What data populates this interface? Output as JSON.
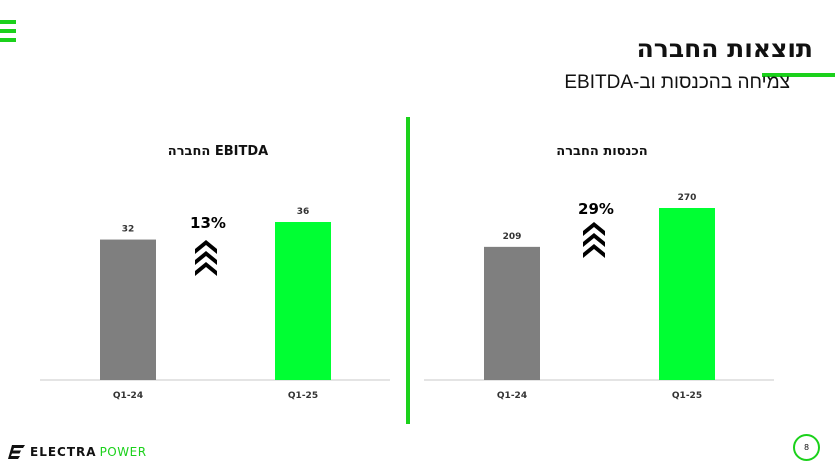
{
  "header": {
    "title": "תוצאות החברה",
    "subtitle": "צמיחה בהכנסות וב-EBITDA"
  },
  "colors": {
    "accent": "#1bd11b",
    "bar_prev": "#7f7f7f",
    "bar_curr": "#00ff33",
    "axis": "#c8c8c8"
  },
  "chart_data": [
    {
      "type": "bar",
      "title": "EBITDA החברה",
      "categories": [
        "Q1-24",
        "Q1-25"
      ],
      "values": [
        32,
        36
      ],
      "growth_label": "13%",
      "grid": false
    },
    {
      "type": "bar",
      "title": "הכנסות החברה",
      "categories": [
        "Q1-24",
        "Q1-25"
      ],
      "values": [
        209,
        270
      ],
      "growth_label": "29%",
      "grid": false
    }
  ],
  "footer": {
    "brand_primary": "ELECTRA",
    "brand_secondary": "POWER",
    "logo_icon": "electra-e-icon",
    "page_number": "8"
  }
}
